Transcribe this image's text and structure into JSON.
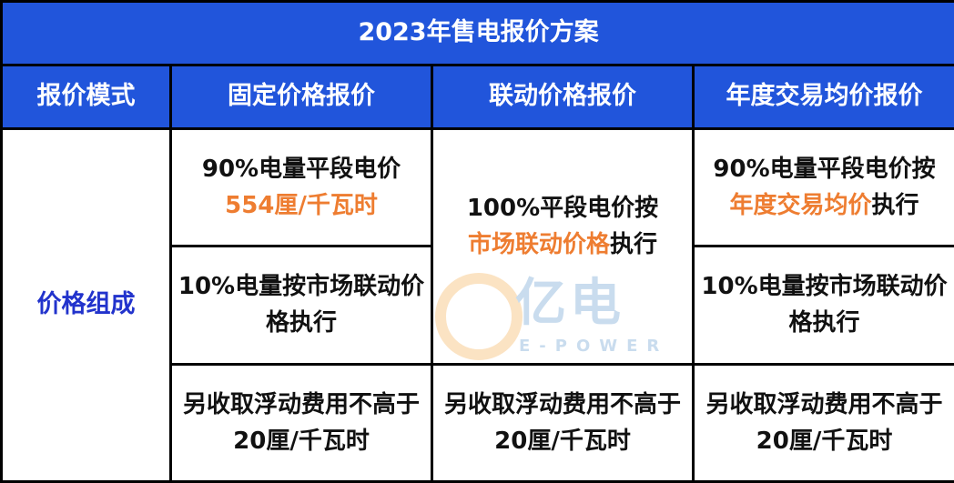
{
  "title": "2023年售电报价方案",
  "headers": [
    "报价模式",
    "固定价格报价",
    "联动价格报价",
    "年度交易均价报价"
  ],
  "row_label": "价格组成",
  "fixed": {
    "r1_line1": "90%电量平段电价",
    "r1_line2_highlight": "554厘/千瓦时",
    "r2": "10%电量按市场联动价格执行",
    "r3": "另收取浮动费用不高于20厘/千瓦时"
  },
  "linked": {
    "line1": "100%平段电价按",
    "line2_highlight": "市场联动价格",
    "line2_rest": "执行",
    "r3": "另收取浮动费用不高于20厘/千瓦时"
  },
  "annual": {
    "r1_line1": "90%电量平段电价按",
    "r1_highlight": "年度交易均价",
    "r1_rest": "执行",
    "r2": "10%电量按市场联动价格执行",
    "r3": "另收取浮动费用不高于20厘/千瓦时"
  },
  "watermark": {
    "main": "亿电",
    "sub": "E-POWER"
  },
  "colors": {
    "header_bg": "#2155db",
    "highlight": "#ee7d31",
    "label": "#2233cc"
  }
}
